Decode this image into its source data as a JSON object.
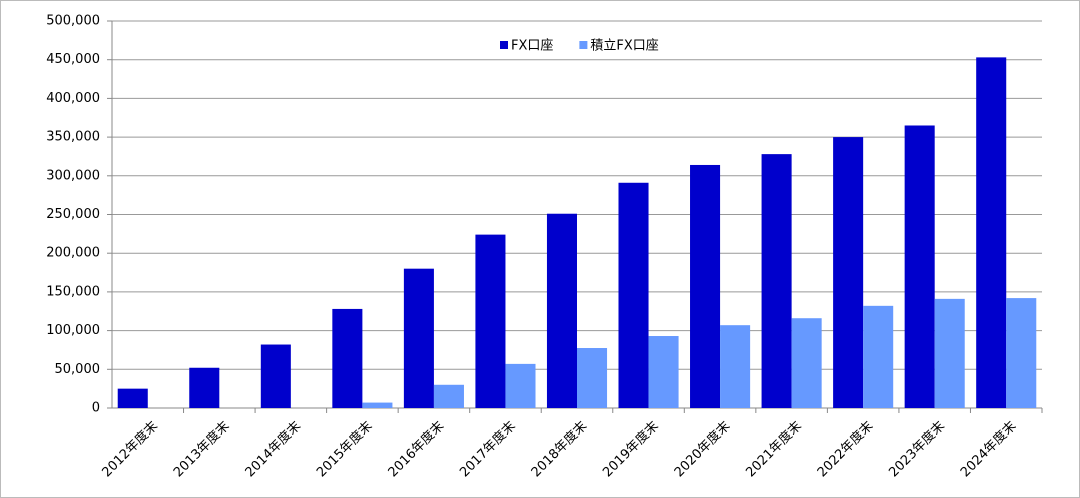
{
  "chart_data": {
    "type": "bar",
    "categories": [
      "2012年度末",
      "2013年度末",
      "2014年度末",
      "2015年度末",
      "2016年度末",
      "2017年度末",
      "2018年度末",
      "2019年度末",
      "2020年度末",
      "2021年度末",
      "2022年度末",
      "2023年度末",
      "2024年度末"
    ],
    "series": [
      {
        "name": "FX口座",
        "color": "#0000cc",
        "values": [
          25000,
          52000,
          82000,
          128000,
          180000,
          224000,
          251000,
          291000,
          314000,
          328000,
          350000,
          365000,
          453000
        ]
      },
      {
        "name": "積立FX口座",
        "color": "#6699ff",
        "values": [
          null,
          null,
          null,
          7000,
          30000,
          57000,
          77500,
          93000,
          107000,
          116000,
          132000,
          141000,
          142000
        ]
      }
    ],
    "ylim": [
      0,
      500000
    ],
    "yticks": [
      {
        "value": 0,
        "label": "0"
      },
      {
        "value": 50000,
        "label": "50,000"
      },
      {
        "value": 100000,
        "label": "100,000"
      },
      {
        "value": 150000,
        "label": "150,000"
      },
      {
        "value": 200000,
        "label": "200,000"
      },
      {
        "value": 250000,
        "label": "250,000"
      },
      {
        "value": 300000,
        "label": "300,000"
      },
      {
        "value": 350000,
        "label": "350,000"
      },
      {
        "value": 400000,
        "label": "400,000"
      },
      {
        "value": 450000,
        "label": "450,000"
      },
      {
        "value": 500000,
        "label": "500,000"
      }
    ],
    "grid": true,
    "legend": "top"
  }
}
